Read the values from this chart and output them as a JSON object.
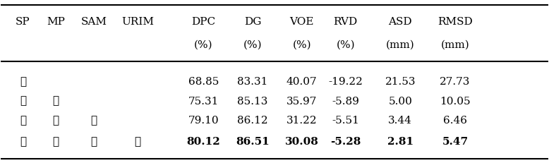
{
  "col_headers": [
    "SP",
    "MP",
    "SAM",
    "URIM",
    "DPC\n(%)",
    "DG\n(%)",
    "VOE\n(%)",
    "RVD\n(%)",
    "ASD\n(mm)",
    "RMSD\n(mm)"
  ],
  "col_headers_line1": [
    "SP",
    "MP",
    "SAM",
    "URIM",
    "DPC",
    "DG",
    "VOE",
    "RVD",
    "ASD",
    "RMSD"
  ],
  "col_headers_line2": [
    "",
    "",
    "",
    "",
    "(%)",
    "(%)",
    "(%)",
    "(%)",
    "(mm)",
    "(mm)"
  ],
  "rows": [
    {
      "checks": [
        true,
        false,
        false,
        false
      ],
      "values": [
        "68.85",
        "83.31",
        "40.07",
        "-19.22",
        "21.53",
        "27.73"
      ],
      "bold": false
    },
    {
      "checks": [
        true,
        true,
        false,
        false
      ],
      "values": [
        "75.31",
        "85.13",
        "35.97",
        "-5.89",
        "5.00",
        "10.05"
      ],
      "bold": false
    },
    {
      "checks": [
        true,
        true,
        true,
        false
      ],
      "values": [
        "79.10",
        "86.12",
        "31.22",
        "-5.51",
        "3.44",
        "6.46"
      ],
      "bold": false
    },
    {
      "checks": [
        true,
        true,
        true,
        true
      ],
      "values": [
        "80.12",
        "86.51",
        "30.08",
        "-5.28",
        "2.81",
        "5.47"
      ],
      "bold": true
    }
  ],
  "bg_color": "#ffffff",
  "text_color": "#000000",
  "check_symbol": "✓",
  "font_size": 11,
  "header_font_size": 11
}
